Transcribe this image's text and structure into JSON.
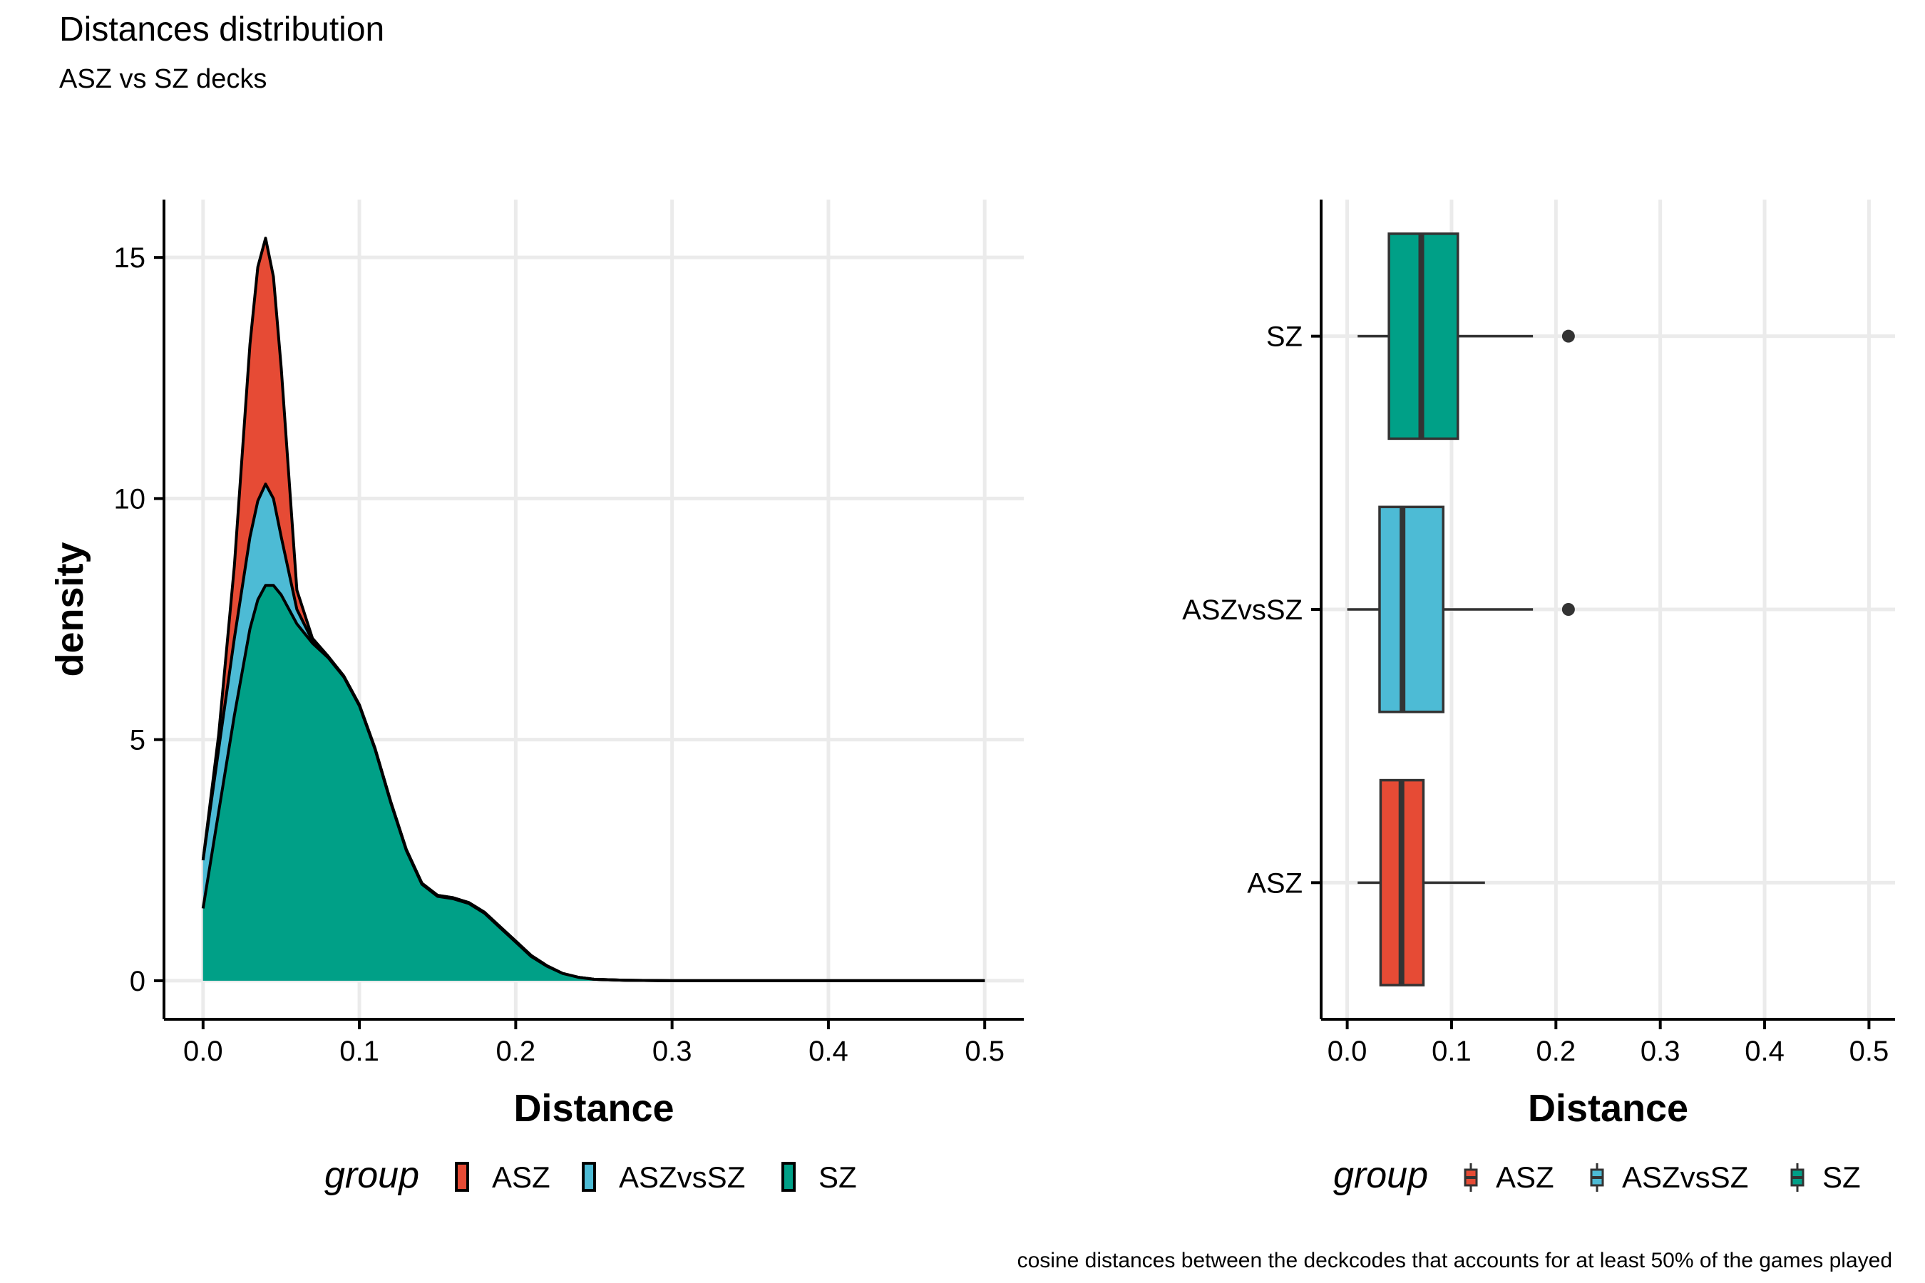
{
  "title": "Distances distribution",
  "subtitle": "ASZ vs SZ decks",
  "caption": "cosine distances between the deckcodes that accounts for at least 50% of the games played",
  "colors": {
    "ASZ": "#E64B35",
    "ASZvsSZ": "#4DBBD5",
    "SZ": "#00A087",
    "outline": "#000000",
    "grid": "#EBEBEB"
  },
  "chart_data": [
    {
      "type": "area",
      "subtype": "stacked density",
      "xlabel": "Distance",
      "ylabel": "density",
      "xlim": [
        -0.025,
        0.525
      ],
      "ylim": [
        -0.8,
        16.2
      ],
      "xticks": [
        0.0,
        0.1,
        0.2,
        0.3,
        0.4,
        0.5
      ],
      "xtick_labels": [
        "0.0",
        "0.1",
        "0.2",
        "0.3",
        "0.4",
        "0.5"
      ],
      "yticks": [
        0,
        5,
        10,
        15
      ],
      "ytick_labels": [
        "0",
        "5",
        "10",
        "15"
      ],
      "grid": true,
      "legend_title": "group",
      "legend_position": "bottom",
      "x": [
        0.0,
        0.01,
        0.02,
        0.03,
        0.035,
        0.04,
        0.045,
        0.05,
        0.06,
        0.07,
        0.08,
        0.09,
        0.1,
        0.11,
        0.12,
        0.13,
        0.14,
        0.15,
        0.16,
        0.17,
        0.18,
        0.19,
        0.2,
        0.21,
        0.22,
        0.23,
        0.24,
        0.25,
        0.27,
        0.3,
        0.35,
        0.4,
        0.45,
        0.5
      ],
      "series": [
        {
          "name": "SZ",
          "values": [
            1.5,
            3.5,
            5.5,
            7.3,
            7.9,
            8.2,
            8.2,
            8.0,
            7.4,
            7.0,
            6.7,
            6.3,
            5.7,
            4.8,
            3.7,
            2.7,
            2.0,
            1.75,
            1.7,
            1.6,
            1.4,
            1.1,
            0.8,
            0.5,
            0.3,
            0.15,
            0.07,
            0.03,
            0.01,
            0,
            0,
            0,
            0,
            0
          ]
        },
        {
          "name": "ASZvsSZ",
          "values": [
            1.0,
            1.3,
            1.6,
            1.9,
            2.05,
            2.1,
            1.8,
            1.2,
            0.3,
            0.05,
            0.02,
            0.02,
            0.02,
            0.02,
            0.02,
            0.02,
            0.02,
            0.02,
            0.02,
            0.02,
            0.02,
            0.02,
            0.02,
            0.02,
            0.01,
            0,
            0,
            0,
            0,
            0,
            0,
            0,
            0,
            0
          ]
        },
        {
          "name": "ASZ",
          "values": [
            0.0,
            0.3,
            1.5,
            4.0,
            4.85,
            5.1,
            4.6,
            3.5,
            0.4,
            0.05,
            0.01,
            0,
            0,
            0,
            0,
            0,
            0,
            0,
            0,
            0,
            0,
            0,
            0,
            0,
            0,
            0,
            0,
            0,
            0,
            0,
            0,
            0,
            0,
            0
          ]
        }
      ]
    },
    {
      "type": "boxplot",
      "orientation": "horizontal",
      "xlabel": "Distance",
      "ylabel": "",
      "xlim": [
        -0.025,
        0.525
      ],
      "xticks": [
        0.0,
        0.1,
        0.2,
        0.3,
        0.4,
        0.5
      ],
      "xtick_labels": [
        "0.0",
        "0.1",
        "0.2",
        "0.3",
        "0.4",
        "0.5"
      ],
      "categories": [
        "ASZ",
        "ASZvsSZ",
        "SZ"
      ],
      "grid": true,
      "legend_title": "group",
      "legend_position": "bottom",
      "boxes": [
        {
          "name": "ASZ",
          "whisker_low": 0.01,
          "q1": 0.032,
          "median": 0.052,
          "q3": 0.073,
          "whisker_high": 0.132,
          "outliers": []
        },
        {
          "name": "ASZvsSZ",
          "whisker_low": 0.0,
          "q1": 0.031,
          "median": 0.053,
          "q3": 0.092,
          "whisker_high": 0.178,
          "outliers": [
            0.212
          ]
        },
        {
          "name": "SZ",
          "whisker_low": 0.01,
          "q1": 0.04,
          "median": 0.071,
          "q3": 0.106,
          "whisker_high": 0.178,
          "outliers": [
            0.212
          ]
        }
      ]
    }
  ]
}
